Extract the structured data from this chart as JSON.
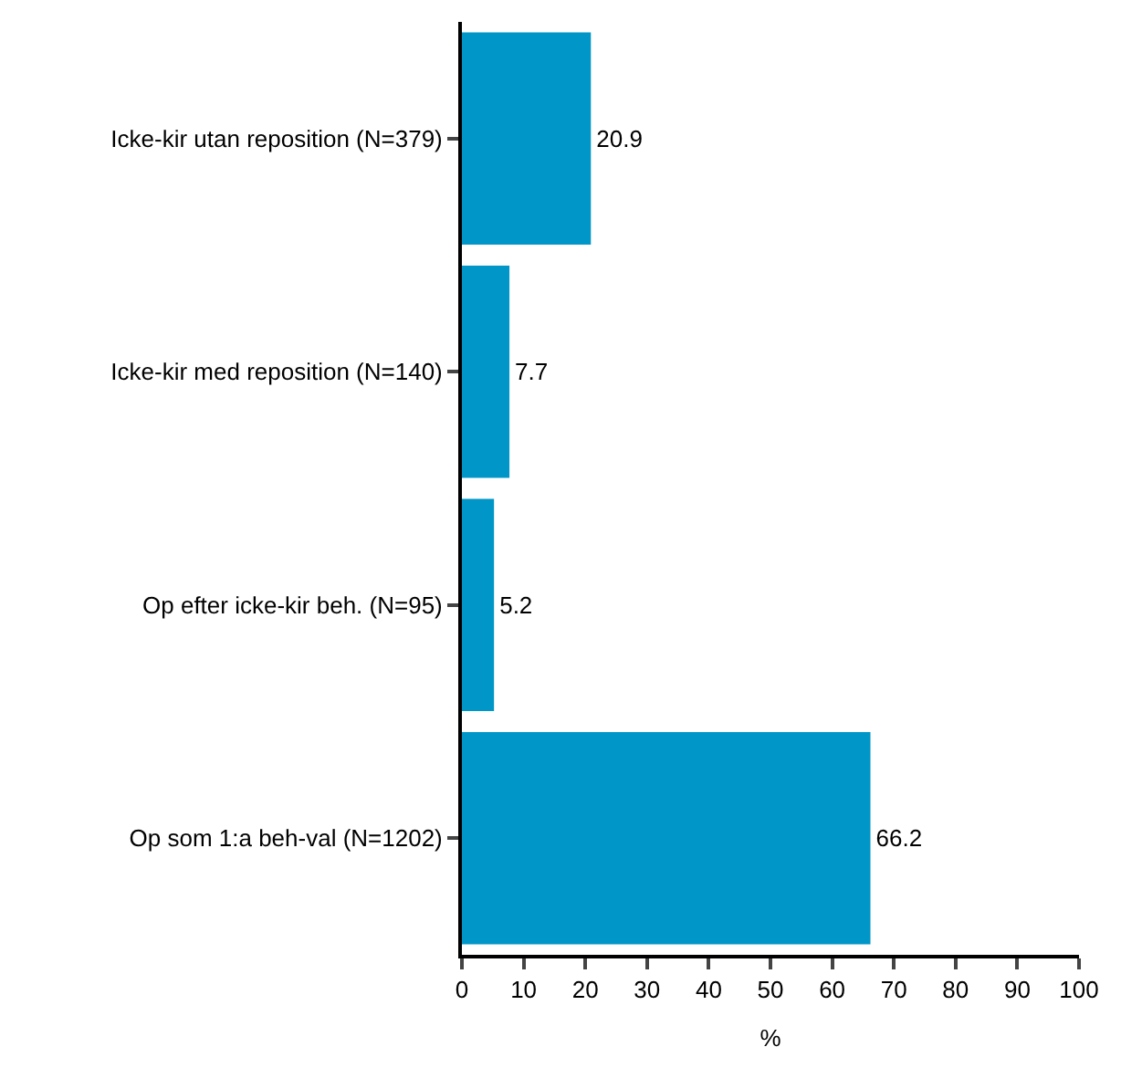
{
  "chart_data": {
    "type": "bar",
    "orientation": "horizontal",
    "xlabel": "%",
    "categories": [
      "Icke-kir utan reposition (N=379)",
      "Icke-kir med reposition (N=140)",
      "Op efter icke-kir beh. (N=95)",
      "Op som 1:a beh-val (N=1202)"
    ],
    "values": [
      20.9,
      7.7,
      5.2,
      66.2
    ],
    "color": "#0096c8",
    "xlim": [
      0,
      100
    ],
    "xticks": [
      0,
      10,
      20,
      30,
      40,
      50,
      60,
      70,
      80,
      90,
      100
    ],
    "grid": false,
    "legend": false,
    "data_labels": true
  }
}
